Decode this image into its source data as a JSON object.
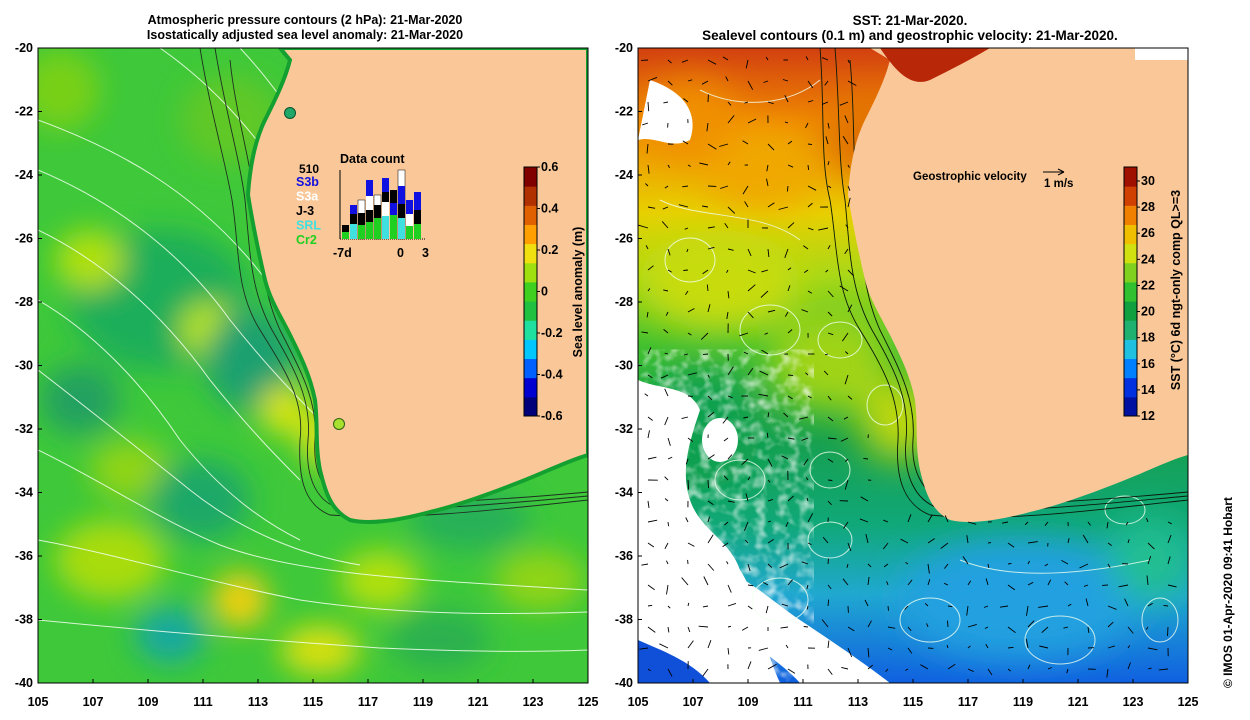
{
  "left_panel": {
    "title_line1": "Atmospheric pressure contours (2 hPa): 21-Mar-2020",
    "title_line2": "Isostatically adjusted sea level anomaly: 21-Mar-2020",
    "y_ticks": [
      "-20",
      "-22",
      "-24",
      "-26",
      "-28",
      "-30",
      "-32",
      "-34",
      "-36",
      "-38",
      "-40"
    ],
    "x_ticks": [
      "105",
      "107",
      "109",
      "111",
      "113",
      "115",
      "117",
      "119",
      "121",
      "123",
      "125"
    ],
    "colorbar": {
      "label": "Sea level anomaly (m)",
      "ticks": [
        "0.6",
        "0.4",
        "0.2",
        "0",
        "-0.2",
        "-0.4",
        "-0.6"
      ],
      "colors": [
        "#00007a",
        "#0000d0",
        "#0060ff",
        "#00c8ff",
        "#20e0a0",
        "#20c040",
        "#40d020",
        "#a0e010",
        "#f0e010",
        "#ffa000",
        "#e06000",
        "#b03000",
        "#800000"
      ]
    },
    "data_count": {
      "title": "Data count",
      "max_label": "510",
      "missions": [
        {
          "name": "S3b",
          "color": "#1010e0"
        },
        {
          "name": "S3a",
          "color": "#ffffff"
        },
        {
          "name": "J-3",
          "color": "#000000"
        },
        {
          "name": "SRL",
          "color": "#40e0e0"
        },
        {
          "name": "Cr2",
          "color": "#20d020"
        }
      ],
      "x_labels": [
        "-7d",
        "0",
        "3"
      ]
    }
  },
  "right_panel": {
    "title_line1": "SST: 21-Mar-2020.",
    "title_line2": "Sealevel contours (0.1 m) and geostrophic velocity: 21-Mar-2020.",
    "y_ticks": [
      "-20",
      "-22",
      "-24",
      "-26",
      "-28",
      "-30",
      "-32",
      "-34",
      "-36",
      "-38",
      "-40"
    ],
    "x_ticks": [
      "105",
      "107",
      "109",
      "111",
      "113",
      "115",
      "117",
      "119",
      "121",
      "123",
      "125"
    ],
    "velocity_label": "Geostrophic velocity",
    "velocity_scale": "1 m/s",
    "colorbar": {
      "label": "SST (°C) 6d ngt-only comp QL>=3",
      "ticks": [
        "30",
        "28",
        "26",
        "24",
        "22",
        "20",
        "18",
        "16",
        "14",
        "12"
      ],
      "colors": [
        "#0010a0",
        "#0030e0",
        "#0080ff",
        "#20c0e0",
        "#20b070",
        "#10a040",
        "#30c030",
        "#80d020",
        "#d0e010",
        "#f0c000",
        "#f08000",
        "#d04000",
        "#a01000"
      ]
    }
  },
  "credit": "© IMOS 01-Apr-2020 09:41 Hobart"
}
